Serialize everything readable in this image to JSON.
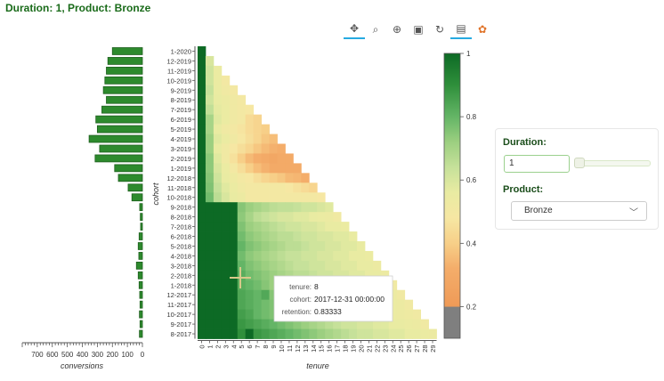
{
  "title": "Duration: 1, Product: Bronze",
  "toolbar": {
    "tools": [
      {
        "name": "pan-tool-icon",
        "glyph": "✥",
        "active": true
      },
      {
        "name": "box-zoom-tool-icon",
        "glyph": "⌕",
        "active": false
      },
      {
        "name": "wheel-zoom-tool-icon",
        "glyph": "⊕",
        "active": false
      },
      {
        "name": "save-tool-icon",
        "glyph": "▣",
        "active": false
      },
      {
        "name": "reset-tool-icon",
        "glyph": "↻",
        "active": false
      },
      {
        "name": "hover-tool-icon",
        "glyph": "▤",
        "active": true
      },
      {
        "name": "bokeh-logo-icon",
        "glyph": "✿",
        "active": false
      }
    ]
  },
  "widgets": {
    "duration_label": "Duration:",
    "duration_value": "1",
    "product_label": "Product:",
    "product_value": "Bronze"
  },
  "tooltip": {
    "tenure_label": "tenure:",
    "tenure_value": "8",
    "cohort_label": "cohort:",
    "cohort_value": "2017-12-31 00:00:00",
    "retention_label": "retention:",
    "retention_value": "0.83333"
  },
  "colors": {
    "title": "#1a6b1a",
    "bar_fill": "#2d8a2d",
    "bar_edge": "#1f5f1f",
    "nan": "#777777"
  },
  "chart_data": [
    {
      "type": "bar",
      "orientation": "horizontal",
      "xlabel": "conversions",
      "xticks": [
        700,
        600,
        500,
        400,
        300,
        200,
        100,
        0
      ],
      "xlim": [
        800,
        0
      ],
      "categories": [
        "1-2020",
        "12-2019",
        "11-2019",
        "10-2019",
        "9-2019",
        "8-2019",
        "7-2019",
        "6-2019",
        "5-2019",
        "4-2019",
        "3-2019",
        "2-2019",
        "1-2019",
        "12-2018",
        "11-2018",
        "10-2018",
        "9-2018",
        "8-2018",
        "7-2018",
        "6-2018",
        "5-2018",
        "4-2018",
        "3-2018",
        "2-2018",
        "1-2018",
        "12-2017",
        "11-2017",
        "10-2017",
        "9-2017",
        "8-2017"
      ],
      "values": [
        200,
        230,
        240,
        250,
        260,
        240,
        270,
        310,
        300,
        355,
        285,
        315,
        185,
        160,
        95,
        70,
        18,
        14,
        12,
        22,
        28,
        24,
        40,
        28,
        22,
        18,
        16,
        20,
        16,
        20
      ]
    },
    {
      "type": "heatmap",
      "xlabel": "tenure",
      "ylabel": "cohort",
      "x": [
        0,
        1,
        2,
        3,
        4,
        5,
        6,
        7,
        8,
        9,
        10,
        11,
        12,
        13,
        14,
        15,
        16,
        17,
        18,
        19,
        20,
        21,
        22,
        23,
        24,
        25,
        26,
        27,
        28,
        29
      ],
      "y": [
        "1-2020",
        "12-2019",
        "11-2019",
        "10-2019",
        "9-2019",
        "8-2019",
        "7-2019",
        "6-2019",
        "5-2019",
        "4-2019",
        "3-2019",
        "2-2019",
        "1-2019",
        "12-2018",
        "11-2018",
        "10-2018",
        "9-2018",
        "8-2018",
        "7-2018",
        "6-2018",
        "5-2018",
        "4-2018",
        "3-2018",
        "2-2018",
        "1-2018",
        "12-2017",
        "11-2017",
        "10-2017",
        "9-2017",
        "8-2017"
      ],
      "layout": "triangular: cohort row i (top=0) has tenure columns 0..i",
      "colorbar": {
        "min": 0.1,
        "max": 1,
        "ticks": [
          1,
          0.8,
          0.6,
          0.4,
          0.2
        ],
        "nan_color": "#777777"
      },
      "palette": [
        "#7f7f7f",
        "#f4a259",
        "#f6c27a",
        "#f7e29a",
        "#eaeaa0",
        "#c9e39a",
        "#9ed17f",
        "#61b463",
        "#2f8f3a",
        "#0b6a24"
      ],
      "values": [
        [
          1
        ],
        [
          1,
          0.6
        ],
        [
          1,
          0.62,
          0.55
        ],
        [
          1,
          0.62,
          0.55,
          0.5
        ],
        [
          1,
          0.64,
          0.55,
          0.52,
          0.5
        ],
        [
          1,
          0.62,
          0.56,
          0.54,
          0.52,
          0.5
        ],
        [
          1,
          0.65,
          0.57,
          0.55,
          0.52,
          0.5,
          0.48
        ],
        [
          1,
          0.7,
          0.58,
          0.55,
          0.52,
          0.5,
          0.44,
          0.42
        ],
        [
          1,
          0.7,
          0.56,
          0.52,
          0.5,
          0.47,
          0.44,
          0.42,
          0.4
        ],
        [
          1,
          0.72,
          0.58,
          0.55,
          0.52,
          0.48,
          0.45,
          0.42,
          0.38,
          0.36
        ],
        [
          1,
          0.72,
          0.56,
          0.52,
          0.48,
          0.45,
          0.42,
          0.38,
          0.35,
          0.33,
          0.32
        ],
        [
          1,
          0.74,
          0.58,
          0.52,
          0.46,
          0.4,
          0.35,
          0.32,
          0.3,
          0.28,
          0.3,
          0.3
        ],
        [
          1,
          0.74,
          0.6,
          0.55,
          0.5,
          0.45,
          0.4,
          0.36,
          0.33,
          0.3,
          0.3,
          0.3,
          0.3
        ],
        [
          1,
          0.75,
          0.62,
          0.56,
          0.53,
          0.5,
          0.48,
          0.45,
          0.42,
          0.4,
          0.38,
          0.35,
          0.34,
          0.32
        ],
        [
          1,
          0.76,
          0.64,
          0.58,
          0.55,
          0.52,
          0.5,
          0.5,
          0.5,
          0.5,
          0.5,
          0.48,
          0.46,
          0.44,
          0.42
        ],
        [
          1,
          0.78,
          0.66,
          0.6,
          0.56,
          0.54,
          0.5,
          0.5,
          0.5,
          0.5,
          0.5,
          0.5,
          0.5,
          0.5,
          0.5,
          0.48
        ],
        [
          1,
          1,
          1,
          1,
          1,
          0.75,
          0.72,
          0.7,
          0.68,
          0.66,
          0.65,
          0.65,
          0.64,
          0.62,
          0.62,
          0.6,
          0.58
        ],
        [
          1,
          1,
          1,
          1,
          1,
          0.74,
          0.7,
          0.66,
          0.64,
          0.62,
          0.6,
          0.6,
          0.58,
          0.58,
          0.56,
          0.55,
          0.54,
          0.52
        ],
        [
          1,
          1,
          1,
          1,
          1,
          0.76,
          0.72,
          0.7,
          0.68,
          0.66,
          0.64,
          0.62,
          0.62,
          0.6,
          0.6,
          0.58,
          0.56,
          0.56,
          0.55
        ],
        [
          1,
          1,
          1,
          1,
          1,
          0.78,
          0.74,
          0.72,
          0.7,
          0.68,
          0.66,
          0.66,
          0.64,
          0.62,
          0.62,
          0.6,
          0.6,
          0.58,
          0.58,
          0.56
        ],
        [
          1,
          1,
          1,
          1,
          1,
          0.8,
          0.76,
          0.74,
          0.72,
          0.7,
          0.68,
          0.66,
          0.66,
          0.64,
          0.62,
          0.62,
          0.6,
          0.6,
          0.58,
          0.58,
          0.56
        ],
        [
          1,
          1,
          1,
          1,
          1,
          0.78,
          0.74,
          0.72,
          0.7,
          0.68,
          0.66,
          0.64,
          0.64,
          0.62,
          0.62,
          0.6,
          0.6,
          0.58,
          0.58,
          0.56,
          0.56,
          0.55
        ],
        [
          1,
          1,
          1,
          1,
          1,
          0.8,
          0.76,
          0.74,
          0.72,
          0.7,
          0.68,
          0.66,
          0.64,
          0.64,
          0.62,
          0.62,
          0.6,
          0.6,
          0.58,
          0.58,
          0.56,
          0.56,
          0.54
        ],
        [
          1,
          1,
          1,
          1,
          1,
          0.82,
          0.78,
          0.76,
          0.74,
          0.72,
          0.7,
          0.68,
          0.66,
          0.66,
          0.64,
          0.62,
          0.62,
          0.6,
          0.6,
          0.58,
          0.58,
          0.56,
          0.56,
          0.54
        ],
        [
          1,
          1,
          1,
          1,
          1,
          0.82,
          0.8,
          0.78,
          0.75,
          0.72,
          0.7,
          0.68,
          0.66,
          0.64,
          0.62,
          0.62,
          0.6,
          0.6,
          0.58,
          0.58,
          0.56,
          0.56,
          0.55,
          0.54,
          0.52
        ],
        [
          1,
          1,
          1,
          1,
          1,
          0.84,
          0.82,
          0.8,
          0.83333,
          0.75,
          0.72,
          0.7,
          0.68,
          0.66,
          0.64,
          0.62,
          0.62,
          0.6,
          0.6,
          0.58,
          0.58,
          0.56,
          0.56,
          0.55,
          0.54,
          0.52
        ],
        [
          1,
          1,
          1,
          1,
          1,
          0.84,
          0.82,
          0.8,
          0.78,
          0.76,
          0.74,
          0.72,
          0.7,
          0.68,
          0.66,
          0.64,
          0.62,
          0.62,
          0.6,
          0.6,
          0.58,
          0.58,
          0.56,
          0.56,
          0.55,
          0.54,
          0.52
        ],
        [
          1,
          1,
          1,
          1,
          1,
          0.86,
          0.84,
          0.8,
          0.78,
          0.76,
          0.74,
          0.72,
          0.7,
          0.68,
          0.66,
          0.64,
          0.62,
          0.62,
          0.6,
          0.6,
          0.58,
          0.58,
          0.56,
          0.56,
          0.55,
          0.54,
          0.53,
          0.52
        ],
        [
          1,
          1,
          1,
          1,
          1,
          0.88,
          0.86,
          0.84,
          0.82,
          0.8,
          0.78,
          0.76,
          0.74,
          0.72,
          0.7,
          0.68,
          0.66,
          0.64,
          0.62,
          0.62,
          0.6,
          0.6,
          0.58,
          0.58,
          0.56,
          0.56,
          0.55,
          0.54,
          0.52
        ],
        [
          1,
          1,
          1,
          1,
          1,
          0.9,
          1,
          0.88,
          0.86,
          0.84,
          0.82,
          0.8,
          0.78,
          0.76,
          0.74,
          0.72,
          0.7,
          0.68,
          0.66,
          0.64,
          0.62,
          0.62,
          0.6,
          0.6,
          0.58,
          0.58,
          0.56,
          0.56,
          0.55,
          0.54
        ]
      ]
    }
  ]
}
